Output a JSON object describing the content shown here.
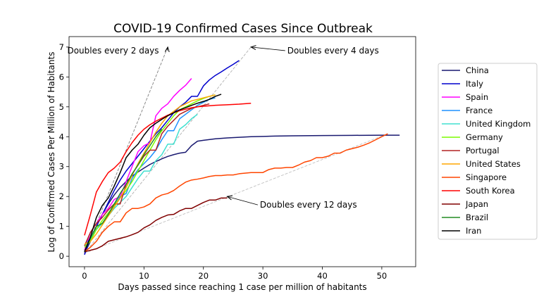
{
  "chart_data": {
    "type": "line",
    "title": "COVID-19 Confirmed Cases Since Outbreak",
    "xlabel": "Days passed since reaching 1 case per million of habitants",
    "ylabel": "Log of Confirmed Cases Per Million of Habitants",
    "xlim": [
      -2.6,
      55.7
    ],
    "ylim": [
      -0.35,
      7.35
    ],
    "xticks": [
      0,
      10,
      20,
      30,
      40,
      50
    ],
    "yticks": [
      0,
      1,
      2,
      3,
      4,
      5,
      6,
      7
    ],
    "grid": false,
    "legend_position": "right",
    "series": [
      {
        "name": "China",
        "color": "#191970",
        "x": [
          0,
          1,
          2,
          3,
          4,
          5,
          6,
          7,
          8,
          9,
          10,
          11,
          12,
          13,
          14,
          15,
          16,
          17,
          18,
          19,
          20,
          22,
          24,
          26,
          28,
          30,
          32,
          35,
          40,
          45,
          50,
          53
        ],
        "y": [
          0.1,
          0.5,
          1.0,
          1.4,
          1.75,
          2.05,
          2.3,
          2.5,
          2.68,
          2.82,
          2.95,
          3.07,
          3.17,
          3.26,
          3.34,
          3.4,
          3.45,
          3.48,
          3.7,
          3.85,
          3.88,
          3.93,
          3.96,
          3.98,
          4.0,
          4.01,
          4.02,
          4.03,
          4.04,
          4.045,
          4.05,
          4.05
        ]
      },
      {
        "name": "Italy",
        "color": "#0000cd",
        "x": [
          0,
          1,
          2,
          3,
          4,
          5,
          6,
          7,
          8,
          9,
          10,
          11,
          12,
          13,
          14,
          15,
          16,
          17,
          18,
          19,
          20,
          21,
          22,
          23,
          24,
          25,
          26
        ],
        "y": [
          0.05,
          0.6,
          1.0,
          1.4,
          1.8,
          2.2,
          2.55,
          2.85,
          3.1,
          3.35,
          3.6,
          3.85,
          4.1,
          4.3,
          4.55,
          4.8,
          5.0,
          5.15,
          5.35,
          5.35,
          5.7,
          5.9,
          6.05,
          6.17,
          6.3,
          6.42,
          6.55
        ]
      },
      {
        "name": "Spain",
        "color": "#ff00ff",
        "x": [
          0,
          1,
          2,
          3,
          4,
          5,
          6,
          7,
          8,
          9,
          10,
          11,
          12,
          13,
          14,
          15,
          16,
          17,
          18
        ],
        "y": [
          0.2,
          0.8,
          1.1,
          1.4,
          1.6,
          1.9,
          2.0,
          2.5,
          3.0,
          3.5,
          3.7,
          3.8,
          4.7,
          4.95,
          5.1,
          5.35,
          5.55,
          5.72,
          5.95
        ]
      },
      {
        "name": "France",
        "color": "#1e90ff",
        "x": [
          0,
          1,
          2,
          3,
          4,
          5,
          6,
          7,
          8,
          9,
          10,
          11,
          12,
          13,
          14,
          15,
          16,
          17,
          18,
          19,
          20,
          21,
          22
        ],
        "y": [
          0.35,
          0.6,
          0.9,
          1.1,
          1.35,
          1.7,
          2.0,
          2.1,
          2.6,
          2.9,
          3.1,
          3.3,
          3.55,
          3.9,
          4.2,
          4.2,
          4.6,
          4.75,
          4.9,
          5.05,
          5.15,
          5.25,
          5.3
        ]
      },
      {
        "name": "United Kingdom",
        "color": "#40e0d0",
        "x": [
          0,
          1,
          2,
          3,
          4,
          5,
          6,
          7,
          8,
          9,
          10,
          11,
          12,
          13,
          14,
          15,
          16,
          17,
          18,
          19
        ],
        "y": [
          0.35,
          0.55,
          0.9,
          1.1,
          1.35,
          1.6,
          1.8,
          2.0,
          2.3,
          2.6,
          2.85,
          2.85,
          3.2,
          3.4,
          3.75,
          3.75,
          4.25,
          4.4,
          4.6,
          4.75
        ]
      },
      {
        "name": "Germany",
        "color": "#7cfc00",
        "x": [
          0,
          1,
          2,
          3,
          4,
          5,
          6,
          7,
          8,
          9,
          10,
          11,
          12,
          13,
          14,
          15,
          16,
          17,
          18,
          19,
          20,
          21,
          22
        ],
        "y": [
          0.3,
          0.5,
          0.9,
          1.2,
          1.45,
          1.7,
          1.95,
          2.2,
          2.5,
          2.85,
          3.2,
          3.55,
          3.9,
          4.2,
          4.45,
          4.7,
          4.9,
          5.0,
          5.1,
          5.2,
          5.28,
          5.35,
          5.4
        ]
      },
      {
        "name": "Portugal",
        "color": "#b22222",
        "x": [
          0,
          1,
          2,
          3,
          4,
          5,
          6,
          7,
          8,
          9,
          10,
          11,
          12,
          13,
          14,
          15,
          16,
          17,
          18,
          19,
          20,
          21
        ],
        "y": [
          0.35,
          0.8,
          1.1,
          1.3,
          1.55,
          1.75,
          1.75,
          2.4,
          2.75,
          3.05,
          3.35,
          3.55,
          3.55,
          4.1,
          4.35,
          4.55,
          4.75,
          4.85,
          4.95,
          5.0,
          5.05,
          5.1
        ]
      },
      {
        "name": "United States",
        "color": "#ffa500",
        "x": [
          0,
          1,
          2,
          3,
          4,
          5,
          6,
          7,
          8,
          9,
          10,
          11,
          12,
          13,
          14,
          15,
          16,
          17,
          18,
          19,
          20,
          21,
          22
        ],
        "y": [
          0.4,
          0.5,
          0.75,
          1.05,
          1.35,
          1.65,
          1.95,
          2.3,
          2.7,
          3.1,
          3.45,
          3.8,
          4.15,
          4.45,
          4.7,
          4.85,
          5.0,
          5.1,
          5.2,
          5.25,
          5.3,
          5.35,
          5.4
        ]
      },
      {
        "name": "Singapore",
        "color": "#ff4500",
        "x": [
          0,
          1,
          2,
          3,
          4,
          5,
          6,
          7,
          8,
          9,
          10,
          11,
          12,
          13,
          14,
          15,
          16,
          17,
          18,
          19,
          20,
          21,
          22,
          23,
          24,
          25,
          26,
          28,
          30,
          31,
          32,
          33,
          34,
          35,
          36,
          37,
          38,
          39,
          40,
          41,
          42,
          43,
          44,
          45,
          46,
          47,
          48,
          49,
          50,
          51
        ],
        "y": [
          0.15,
          0.3,
          0.5,
          0.8,
          1.0,
          1.15,
          1.15,
          1.45,
          1.6,
          1.6,
          1.65,
          1.75,
          1.95,
          2.05,
          2.1,
          2.2,
          2.35,
          2.48,
          2.55,
          2.58,
          2.62,
          2.67,
          2.7,
          2.7,
          2.72,
          2.72,
          2.76,
          2.8,
          2.8,
          2.9,
          2.95,
          2.95,
          2.97,
          2.97,
          3.05,
          3.15,
          3.2,
          3.3,
          3.3,
          3.35,
          3.45,
          3.45,
          3.55,
          3.6,
          3.65,
          3.72,
          3.8,
          3.9,
          4.0,
          4.1
        ]
      },
      {
        "name": "South Korea",
        "color": "#ff0000",
        "x": [
          0,
          1,
          2,
          3,
          4,
          5,
          6,
          7,
          8,
          9,
          10,
          11,
          12,
          13,
          14,
          15,
          16,
          17,
          18,
          19,
          20,
          22,
          24,
          26,
          28
        ],
        "y": [
          0.7,
          1.4,
          2.15,
          2.5,
          2.8,
          2.95,
          3.15,
          3.5,
          3.8,
          4.05,
          4.25,
          4.4,
          4.52,
          4.62,
          4.72,
          4.8,
          4.87,
          4.92,
          4.97,
          5.0,
          5.02,
          5.05,
          5.07,
          5.09,
          5.12
        ]
      },
      {
        "name": "Japan",
        "color": "#800000",
        "x": [
          0,
          1,
          2,
          3,
          4,
          5,
          6,
          7,
          8,
          9,
          10,
          11,
          12,
          13,
          14,
          15,
          16,
          17,
          18,
          19,
          20,
          21,
          22,
          23,
          24
        ],
        "y": [
          0.15,
          0.2,
          0.25,
          0.35,
          0.5,
          0.55,
          0.6,
          0.65,
          0.72,
          0.8,
          0.95,
          1.05,
          1.2,
          1.3,
          1.38,
          1.4,
          1.52,
          1.6,
          1.6,
          1.7,
          1.8,
          1.88,
          1.88,
          1.95,
          1.95
        ]
      },
      {
        "name": "Brazil",
        "color": "#228b22",
        "x": [
          0,
          1,
          2,
          3,
          4,
          5,
          6,
          7,
          8,
          9,
          10,
          11,
          12,
          13
        ],
        "y": [
          0.15,
          0.6,
          1.0,
          1.1,
          1.4,
          1.75,
          2.1,
          2.4,
          2.75,
          3.05,
          3.4,
          3.7,
          4.0,
          4.25
        ]
      },
      {
        "name": "Iran",
        "color": "#000000",
        "x": [
          0,
          1,
          2,
          3,
          4,
          5,
          6,
          7,
          8,
          9,
          10,
          11,
          12,
          13,
          14,
          15,
          16,
          17,
          18,
          19,
          20,
          21,
          22,
          23
        ],
        "y": [
          0.15,
          0.65,
          1.3,
          1.7,
          1.95,
          2.35,
          2.8,
          3.3,
          3.55,
          3.75,
          4.05,
          4.3,
          4.45,
          4.58,
          4.7,
          4.8,
          4.9,
          4.97,
          5.05,
          5.12,
          5.18,
          5.25,
          5.35,
          5.42
        ]
      }
    ],
    "reference_lines": [
      {
        "label": "Doubles every 2 days",
        "points": [
          [
            0,
            0.1
          ],
          [
            14,
            7.0
          ]
        ],
        "color": "#808080"
      },
      {
        "label": "Doubles every 4 days",
        "points": [
          [
            0,
            0.1
          ],
          [
            28,
            7.0
          ]
        ],
        "color": "#b0b0b0"
      },
      {
        "label": "Doubles every 12 days",
        "points": [
          [
            0,
            0.1
          ],
          [
            51,
            4.1
          ]
        ],
        "color": "#c0c0c0"
      }
    ],
    "annotations": [
      {
        "text": "Doubles every 2 days",
        "xy": [
          14,
          7.0
        ],
        "xytext": [
          -2.9,
          6.88
        ],
        "align": "start"
      },
      {
        "text": "Doubles every 4 days",
        "xy": [
          28,
          7.0
        ],
        "xytext": [
          34.1,
          6.88
        ],
        "align": "start"
      },
      {
        "text": "Doubles every 12 days",
        "xy": [
          24,
          2.0
        ],
        "xytext": [
          29.5,
          1.72
        ],
        "align": "start"
      }
    ]
  }
}
